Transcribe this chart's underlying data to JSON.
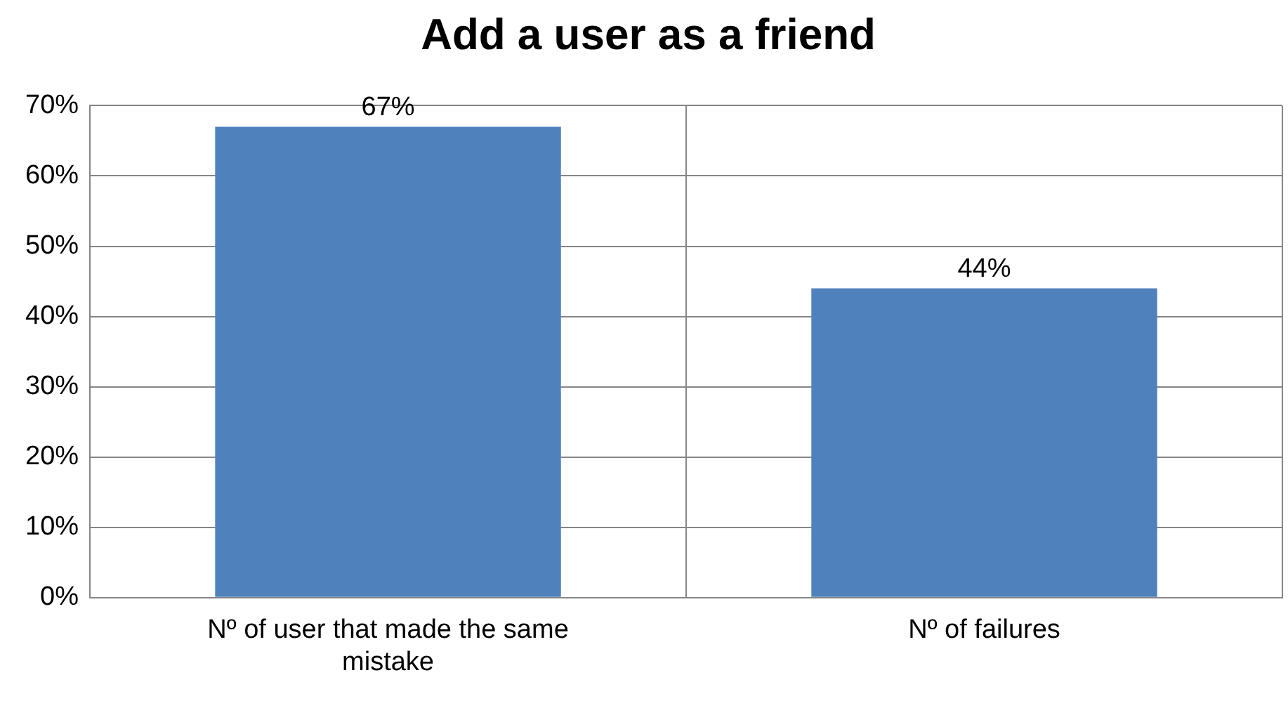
{
  "chart_data": {
    "type": "bar",
    "title": "Add a user as a friend",
    "categories": [
      "Nº of user that made the same mistake",
      "Nº of failures"
    ],
    "values": [
      67,
      44
    ],
    "color": "#4f81bd",
    "value_labels": [
      "67%",
      "44%"
    ],
    "ylim": [
      0,
      70
    ],
    "yticks": [
      {
        "value": 0,
        "label": "0%"
      },
      {
        "value": 10,
        "label": "10%"
      },
      {
        "value": 20,
        "label": "20%"
      },
      {
        "value": 30,
        "label": "30%"
      },
      {
        "value": 40,
        "label": "40%"
      },
      {
        "value": 50,
        "label": "50%"
      },
      {
        "value": 60,
        "label": "60%"
      },
      {
        "value": 70,
        "label": "70%"
      }
    ],
    "grid": true,
    "legend": false
  }
}
